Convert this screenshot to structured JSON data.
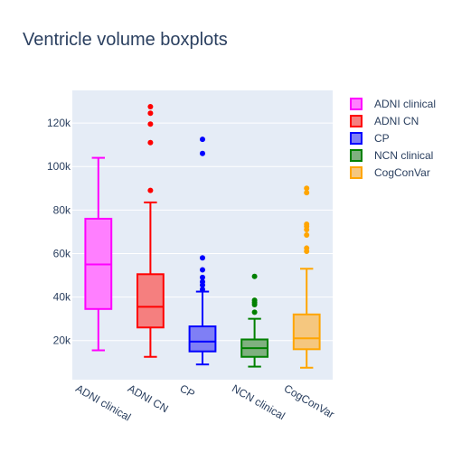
{
  "chart_data": {
    "type": "box",
    "title": "Ventricle volume boxplots",
    "xlabel": "",
    "ylabel": "",
    "categories": [
      "ADNI clinical",
      "ADNI CN",
      "CP",
      "NCN clinical",
      "CogConVar"
    ],
    "ylim": [
      2000,
      135000
    ],
    "yticks": [
      20000,
      40000,
      60000,
      80000,
      100000,
      120000
    ],
    "ytick_labels": [
      "20k",
      "40k",
      "60k",
      "80k",
      "100k",
      "120k"
    ],
    "grid": true,
    "legend_position": "top-right",
    "series": [
      {
        "name": "ADNI clinical",
        "color": "#ff00ff",
        "fill": "#ff7fff",
        "min": 15500,
        "q1": 34500,
        "median": 55000,
        "q3": 76000,
        "max": 104000,
        "outliers": []
      },
      {
        "name": "ADNI CN",
        "color": "#ff0000",
        "fill": "#f57f7f",
        "min": 12500,
        "q1": 26000,
        "median": 35500,
        "q3": 50500,
        "max": 83500,
        "outliers": [
          89000,
          111000,
          119500,
          124500,
          127500
        ]
      },
      {
        "name": "CP",
        "color": "#0000ff",
        "fill": "#7f7ff5",
        "min": 9000,
        "q1": 15000,
        "median": 19500,
        "q3": 26500,
        "max": 42500,
        "outliers": [
          43500,
          45500,
          47000,
          49000,
          52500,
          58000,
          106000,
          112500
        ]
      },
      {
        "name": "NCN clinical",
        "color": "#008000",
        "fill": "#7fb07f",
        "min": 8000,
        "q1": 12500,
        "median": 16500,
        "q3": 20500,
        "max": 30000,
        "outliers": [
          33000,
          36500,
          37500,
          38500,
          49500
        ]
      },
      {
        "name": "CogConVar",
        "color": "#ffa500",
        "fill": "#f5c77f",
        "min": 7500,
        "q1": 16000,
        "median": 21000,
        "q3": 32000,
        "max": 53000,
        "outliers": [
          61000,
          62500,
          68500,
          71000,
          72500,
          73500,
          88000,
          90000
        ]
      }
    ]
  },
  "colors": {
    "plot_bg": "#e5ecf6",
    "grid": "#ffffff",
    "text": "#2a3f5f"
  }
}
